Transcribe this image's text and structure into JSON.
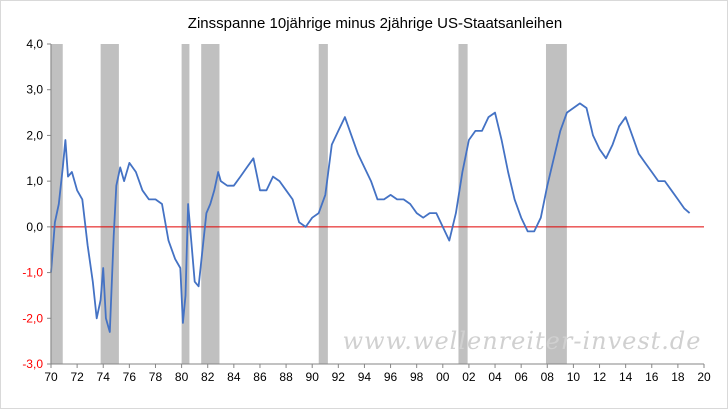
{
  "chart_data": {
    "type": "line",
    "title": "Zinsspanne 10jährige minus 2jährige US-Staatsanleihen",
    "xlabel": "",
    "ylabel": "",
    "xlim": [
      1970,
      2020
    ],
    "ylim": [
      -3.0,
      4.0
    ],
    "x_ticks": [
      "70",
      "72",
      "74",
      "76",
      "78",
      "80",
      "82",
      "84",
      "86",
      "88",
      "90",
      "92",
      "94",
      "96",
      "98",
      "00",
      "02",
      "04",
      "06",
      "08",
      "10",
      "12",
      "14",
      "16",
      "18",
      "20"
    ],
    "y_ticks": [
      "4,0",
      "3,0",
      "2,0",
      "1,0",
      "0,0",
      "-1,0",
      "-2,0",
      "-3,0"
    ],
    "grid": false,
    "zero_line": {
      "value": 0,
      "color": "#e00000"
    },
    "recessions": [
      {
        "start": 1969.95,
        "end": 1970.9
      },
      {
        "start": 1973.8,
        "end": 1975.2
      },
      {
        "start": 1980.0,
        "end": 1980.6
      },
      {
        "start": 1981.5,
        "end": 1982.9
      },
      {
        "start": 1990.5,
        "end": 1991.2
      },
      {
        "start": 2001.2,
        "end": 2001.9
      },
      {
        "start": 2007.9,
        "end": 2009.5
      }
    ],
    "series": [
      {
        "color": "#4472c4",
        "x": [
          1970.0,
          1970.3,
          1970.6,
          1970.9,
          1971.1,
          1971.3,
          1971.6,
          1972.0,
          1972.4,
          1972.8,
          1973.2,
          1973.5,
          1973.8,
          1974.0,
          1974.2,
          1974.5,
          1974.8,
          1975.0,
          1975.3,
          1975.6,
          1976.0,
          1976.5,
          1977.0,
          1977.5,
          1978.0,
          1978.5,
          1979.0,
          1979.5,
          1979.9,
          1980.1,
          1980.3,
          1980.5,
          1980.8,
          1981.0,
          1981.3,
          1981.6,
          1981.9,
          1982.2,
          1982.5,
          1982.8,
          1983.0,
          1983.5,
          1984.0,
          1984.5,
          1985.0,
          1985.5,
          1986.0,
          1986.5,
          1987.0,
          1987.5,
          1988.0,
          1988.5,
          1989.0,
          1989.5,
          1990.0,
          1990.5,
          1991.0,
          1991.5,
          1992.0,
          1992.5,
          1993.0,
          1993.5,
          1994.0,
          1994.5,
          1995.0,
          1995.5,
          1996.0,
          1996.5,
          1997.0,
          1997.5,
          1998.0,
          1998.5,
          1999.0,
          1999.5,
          2000.0,
          2000.5,
          2001.0,
          2001.5,
          2002.0,
          2002.5,
          2003.0,
          2003.5,
          2004.0,
          2004.5,
          2005.0,
          2005.5,
          2006.0,
          2006.5,
          2007.0,
          2007.5,
          2008.0,
          2008.5,
          2009.0,
          2009.5,
          2010.0,
          2010.5,
          2011.0,
          2011.5,
          2012.0,
          2012.5,
          2013.0,
          2013.5,
          2014.0,
          2014.5,
          2015.0,
          2015.5,
          2016.0,
          2016.5,
          2017.0,
          2017.5,
          2018.0,
          2018.5,
          2018.9
        ],
        "values": [
          -1.0,
          0.1,
          0.5,
          1.3,
          1.9,
          1.1,
          1.2,
          0.8,
          0.6,
          -0.4,
          -1.2,
          -2.0,
          -1.6,
          -0.9,
          -2.0,
          -2.3,
          -0.2,
          0.9,
          1.3,
          1.0,
          1.4,
          1.2,
          0.8,
          0.6,
          0.6,
          0.5,
          -0.3,
          -0.7,
          -0.9,
          -2.1,
          -1.5,
          0.5,
          -0.5,
          -1.2,
          -1.3,
          -0.5,
          0.3,
          0.5,
          0.8,
          1.2,
          1.0,
          0.9,
          0.9,
          1.1,
          1.3,
          1.5,
          0.8,
          0.8,
          1.1,
          1.0,
          0.8,
          0.6,
          0.1,
          0.0,
          0.2,
          0.3,
          0.7,
          1.8,
          2.1,
          2.4,
          2.0,
          1.6,
          1.3,
          1.0,
          0.6,
          0.6,
          0.7,
          0.6,
          0.6,
          0.5,
          0.3,
          0.2,
          0.3,
          0.3,
          0.0,
          -0.3,
          0.3,
          1.2,
          1.9,
          2.1,
          2.1,
          2.4,
          2.5,
          1.9,
          1.2,
          0.6,
          0.2,
          -0.1,
          -0.1,
          0.2,
          0.9,
          1.5,
          2.1,
          2.5,
          2.6,
          2.7,
          2.6,
          2.0,
          1.7,
          1.5,
          1.8,
          2.2,
          2.4,
          2.0,
          1.6,
          1.4,
          1.2,
          1.0,
          1.0,
          0.8,
          0.6,
          0.4,
          0.3
        ]
      }
    ]
  },
  "watermark": "www.wellenreiter-invest.de"
}
